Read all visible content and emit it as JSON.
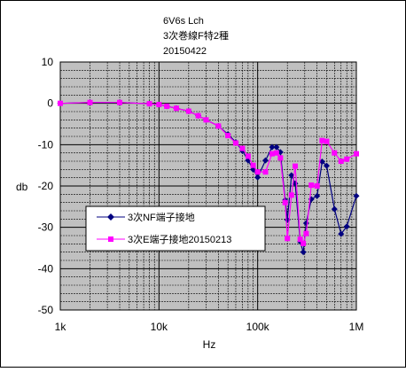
{
  "chart_data": {
    "type": "line",
    "title_lines": [
      "6V6s Lch",
      "3次巻線F特2種",
      "20150422"
    ],
    "xlabel": "Hz",
    "ylabel": "db",
    "x_scale": "log",
    "xlim": [
      1000,
      1000000
    ],
    "ylim": [
      -50,
      10
    ],
    "x_tick_labels": [
      {
        "value": 1000,
        "label": "1k"
      },
      {
        "value": 10000,
        "label": "10k"
      },
      {
        "value": 100000,
        "label": "100k"
      },
      {
        "value": 1000000,
        "label": "1M"
      }
    ],
    "y_ticks": [
      10,
      0,
      -10,
      -20,
      -30,
      -40,
      -50
    ],
    "grid": true,
    "legend_position": "lower-left, inside plot",
    "series": [
      {
        "name": "3次NF端子接地",
        "color": "#000080",
        "marker": "diamond",
        "points": [
          [
            1000,
            0
          ],
          [
            2000,
            0.2
          ],
          [
            4000,
            0.2
          ],
          [
            8000,
            -0.1
          ],
          [
            10000,
            -0.3
          ],
          [
            12000,
            -0.7
          ],
          [
            15000,
            -1.2
          ],
          [
            20000,
            -1.9
          ],
          [
            25000,
            -3.0
          ],
          [
            30000,
            -4.0
          ],
          [
            40000,
            -5.5
          ],
          [
            50000,
            -7.5
          ],
          [
            60000,
            -9.4
          ],
          [
            70000,
            -11.5
          ],
          [
            80000,
            -13.8
          ],
          [
            90000,
            -16.0
          ],
          [
            100000,
            -17.9
          ],
          [
            120000,
            -13.8
          ],
          [
            140000,
            -10.6
          ],
          [
            155000,
            -10.6
          ],
          [
            170000,
            -11.8
          ],
          [
            190000,
            -23.4
          ],
          [
            200000,
            -28.2
          ],
          [
            220000,
            -17.4
          ],
          [
            240000,
            -19.4
          ],
          [
            270000,
            -33.5
          ],
          [
            290000,
            -36.0
          ],
          [
            310000,
            -29.0
          ],
          [
            350000,
            -23.2
          ],
          [
            400000,
            -22.4
          ],
          [
            450000,
            -14.1
          ],
          [
            500000,
            -15.1
          ],
          [
            600000,
            -25.6
          ],
          [
            700000,
            -31.6
          ],
          [
            800000,
            -29.8
          ],
          [
            1000000,
            -22.4
          ]
        ]
      },
      {
        "name": "3次E端子接地20150213",
        "color": "#ff00ff",
        "marker": "square",
        "points": [
          [
            1000,
            0
          ],
          [
            2000,
            0.2
          ],
          [
            4000,
            0.2
          ],
          [
            8000,
            -0.1
          ],
          [
            10000,
            -0.3
          ],
          [
            12000,
            -0.7
          ],
          [
            15000,
            -1.2
          ],
          [
            20000,
            -1.9
          ],
          [
            25000,
            -3.0
          ],
          [
            30000,
            -4.0
          ],
          [
            40000,
            -5.5
          ],
          [
            50000,
            -7.8
          ],
          [
            60000,
            -9.6
          ],
          [
            70000,
            -10.9
          ],
          [
            80000,
            -12.8
          ],
          [
            90000,
            -15.0
          ],
          [
            100000,
            -16.6
          ],
          [
            120000,
            -16.6
          ],
          [
            140000,
            -12.2
          ],
          [
            155000,
            -12.0
          ],
          [
            170000,
            -13.2
          ],
          [
            190000,
            -24.0
          ],
          [
            200000,
            -32.7
          ],
          [
            220000,
            -22.2
          ],
          [
            240000,
            -15.2
          ],
          [
            270000,
            -32.9
          ],
          [
            290000,
            -33.9
          ],
          [
            310000,
            -31.5
          ],
          [
            350000,
            -19.8
          ],
          [
            400000,
            -20.0
          ],
          [
            450000,
            -9.0
          ],
          [
            500000,
            -9.2
          ],
          [
            600000,
            -12.0
          ],
          [
            700000,
            -14.0
          ],
          [
            800000,
            -13.5
          ],
          [
            1000000,
            -12.2
          ]
        ]
      }
    ]
  }
}
